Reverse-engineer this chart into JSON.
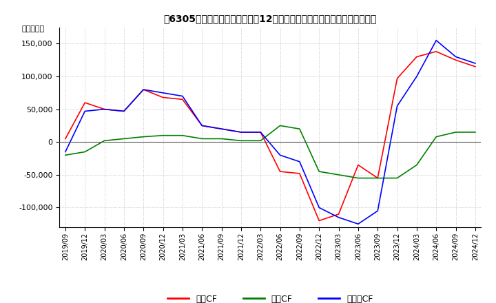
{
  "title": "[挅］　キャッシュフローの12か月移動合計の対前年同期増減額の推移",
  "title_text": "[挅]　キャッシュフローの12か月移動合計の対前年同期増減額の推移",
  "ylabel": "（百万円）",
  "ylim": [
    -130000,
    175000
  ],
  "yticks": [
    -100000,
    -50000,
    0,
    50000,
    100000,
    150000
  ],
  "legend_labels": [
    "営業CF",
    "投資CF",
    "フリーCF"
  ],
  "colors": {
    "eigyo": "#ff0000",
    "toshi": "#008000",
    "free": "#0000ff"
  },
  "x_labels": [
    "2019/09",
    "2019/12",
    "2020/03",
    "2020/06",
    "2020/09",
    "2020/12",
    "2021/03",
    "2021/06",
    "2021/09",
    "2021/12",
    "2022/03",
    "2022/06",
    "2022/09",
    "2022/12",
    "2023/03",
    "2023/06",
    "2023/09",
    "2023/12",
    "2024/03",
    "2024/06",
    "2024/09",
    "2024/12"
  ],
  "eigyo_cf": [
    5000,
    60000,
    50000,
    47000,
    80000,
    68000,
    65000,
    25000,
    20000,
    15000,
    15000,
    -45000,
    -48000,
    -120000,
    -110000,
    -35000,
    -55000,
    97000,
    130000,
    138000,
    125000,
    115000
  ],
  "toshi_cf": [
    -20000,
    -15000,
    2000,
    5000,
    8000,
    10000,
    10000,
    5000,
    5000,
    2000,
    2000,
    25000,
    20000,
    -45000,
    -50000,
    -55000,
    -55000,
    -55000,
    -35000,
    8000,
    15000,
    15000
  ],
  "free_cf": [
    -15000,
    47000,
    50000,
    47000,
    80000,
    75000,
    70000,
    25000,
    20000,
    15000,
    15000,
    -20000,
    -30000,
    -100000,
    -115000,
    -125000,
    -105000,
    55000,
    100000,
    155000,
    130000,
    120000
  ]
}
